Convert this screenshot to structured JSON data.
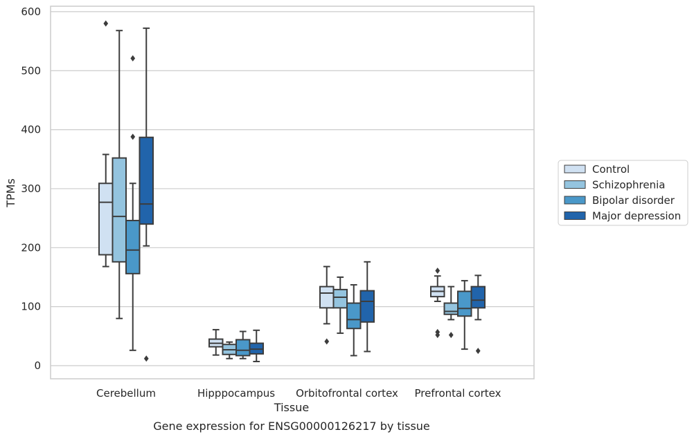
{
  "chart_data": {
    "type": "box",
    "title": "",
    "caption": "Gene expression for ENSG00000126217 by tissue",
    "xlabel": "Tissue",
    "ylabel": "TPMs",
    "ylim": [
      -22,
      610
    ],
    "yticks": [
      0,
      100,
      200,
      300,
      400,
      500,
      600
    ],
    "grid": "horizontal",
    "legend_position": "right",
    "categories": [
      "Cerebellum",
      "Hipppocampus",
      "Orbitofrontal cortex",
      "Prefrontal cortex"
    ],
    "series": [
      {
        "name": "Control",
        "color": "#d0e1f2",
        "boxes": [
          {
            "whislo": 168,
            "q1": 188,
            "med": 277,
            "q3": 309,
            "whishi": 358,
            "fliers": [
              580
            ]
          },
          {
            "whislo": 18,
            "q1": 32,
            "med": 38,
            "q3": 45,
            "whishi": 61,
            "fliers": []
          },
          {
            "whislo": 71,
            "q1": 98,
            "med": 123,
            "q3": 134,
            "whishi": 168,
            "fliers": [
              41
            ]
          },
          {
            "whislo": 109,
            "q1": 117,
            "med": 126,
            "q3": 134,
            "whishi": 152,
            "fliers": [
              161,
              57,
              52
            ]
          }
        ]
      },
      {
        "name": "Schizophrenia",
        "color": "#94c4df",
        "boxes": [
          {
            "whislo": 80,
            "q1": 176,
            "med": 253,
            "q3": 352,
            "whishi": 568,
            "fliers": []
          },
          {
            "whislo": 12,
            "q1": 19,
            "med": 27,
            "q3": 36,
            "whishi": 40,
            "fliers": []
          },
          {
            "whislo": 55,
            "q1": 98,
            "med": 116,
            "q3": 129,
            "whishi": 150,
            "fliers": []
          },
          {
            "whislo": 78,
            "q1": 87,
            "med": 92,
            "q3": 106,
            "whishi": 134,
            "fliers": [
              52
            ]
          }
        ]
      },
      {
        "name": "Bipolar disorder",
        "color": "#4a98c9",
        "boxes": [
          {
            "whislo": 26,
            "q1": 156,
            "med": 196,
            "q3": 246,
            "whishi": 309,
            "fliers": [
              521,
              388
            ]
          },
          {
            "whislo": 12,
            "q1": 17,
            "med": 26,
            "q3": 44,
            "whishi": 58,
            "fliers": []
          },
          {
            "whislo": 17,
            "q1": 63,
            "med": 78,
            "q3": 106,
            "whishi": 137,
            "fliers": []
          },
          {
            "whislo": 28,
            "q1": 84,
            "med": 97,
            "q3": 126,
            "whishi": 144,
            "fliers": []
          }
        ]
      },
      {
        "name": "Major depression",
        "color": "#2164ab",
        "boxes": [
          {
            "whislo": 203,
            "q1": 240,
            "med": 274,
            "q3": 387,
            "whishi": 572,
            "fliers": [
              12
            ]
          },
          {
            "whislo": 7,
            "q1": 20,
            "med": 28,
            "q3": 38,
            "whishi": 60,
            "fliers": []
          },
          {
            "whislo": 24,
            "q1": 74,
            "med": 109,
            "q3": 127,
            "whishi": 176,
            "fliers": []
          },
          {
            "whislo": 78,
            "q1": 98,
            "med": 111,
            "q3": 134,
            "whishi": 153,
            "fliers": [
              25
            ]
          }
        ]
      }
    ],
    "colors": {
      "grid": "#cccccc",
      "frame": "#cccccc",
      "box_edge": "#3c3c3c",
      "text": "#262626"
    }
  }
}
